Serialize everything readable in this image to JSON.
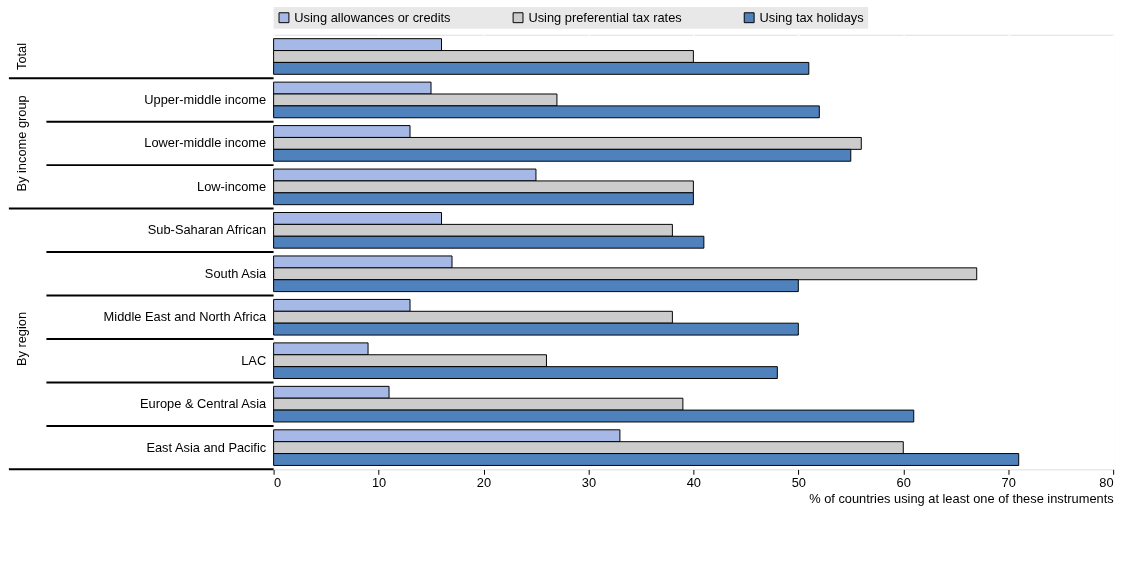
{
  "chart_data": {
    "type": "bar",
    "orientation": "horizontal",
    "categories": [
      null,
      "Upper-middle income",
      "Lower-middle income",
      "Low-income",
      "Sub-Saharan African",
      "South Asia",
      "Middle East and North Africa",
      "LAC",
      "Europe & Central Asia",
      "East Asia and Pacific"
    ],
    "series": [
      {
        "name": "Using allowances or credits",
        "color": "#a6b8e6",
        "values": [
          16,
          15,
          13,
          25,
          16,
          17,
          13,
          9,
          11,
          33
        ]
      },
      {
        "name": "Using preferential tax rates",
        "color": "#cccccc",
        "values": [
          40,
          27,
          56,
          40,
          38,
          67,
          38,
          26,
          39,
          60
        ]
      },
      {
        "name": "Using tax holidays",
        "color": "#4f81bd",
        "values": [
          51,
          52,
          55,
          40,
          41,
          50,
          50,
          48,
          61,
          71
        ]
      }
    ],
    "xlabel": "% of countries using at least one of these instruments",
    "xlim": [
      0,
      80
    ],
    "xticks": [
      0,
      10,
      20,
      30,
      40,
      50,
      60,
      70,
      80
    ],
    "annotations": [
      "Total",
      "By income group",
      "By region"
    ],
    "grid": "x",
    "legend": "top"
  }
}
